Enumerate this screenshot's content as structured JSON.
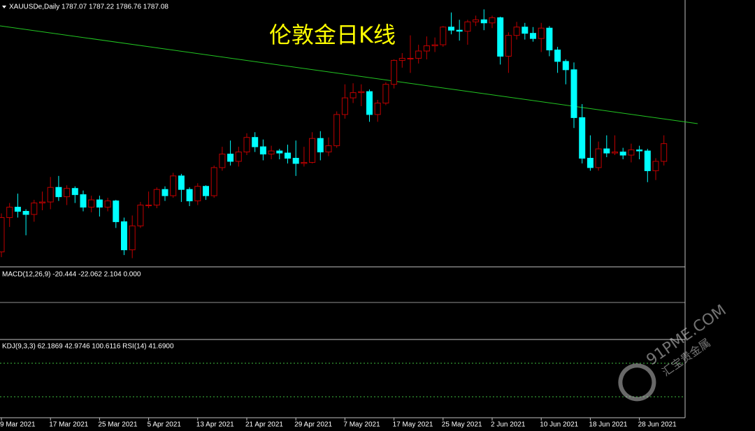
{
  "chart_data": {
    "type": "candlestick",
    "symbol_header": "XAUUSDe,Daily  1787.07 1787.22 1786.76 1787.08",
    "title": "伦敦金日K线",
    "macd_label": "MACD(12,26,9) -20.444 -22.062 2.104 0.000",
    "kdj_label": "KDJ(9,3,3) 62.1869 42.9746 100.6116  RSI(14) 41.6900",
    "watermark": "91PME.COM",
    "watermark_cn": "汇宝贵金属",
    "up_color": "#c00000",
    "down_color": "#00ffff",
    "ylim": [
      1670,
      1925
    ],
    "xticks": [
      {
        "value": 1,
        "label": "9 Mar 2021"
      },
      {
        "value": 7,
        "label": "17 Mar 2021"
      },
      {
        "value": 13,
        "label": "25 Mar 2021"
      },
      {
        "value": 19,
        "label": "5 Apr 2021"
      },
      {
        "value": 25,
        "label": "13 Apr 2021"
      },
      {
        "value": 31,
        "label": "21 Apr 2021"
      },
      {
        "value": 37,
        "label": "29 Apr 2021"
      },
      {
        "value": 43,
        "label": "7 May 2021"
      },
      {
        "value": 49,
        "label": "17 May 2021"
      },
      {
        "value": 55,
        "label": "25 May 2021"
      },
      {
        "value": 61,
        "label": "2 Jun 2021"
      },
      {
        "value": 67,
        "label": "10 Jun 2021"
      },
      {
        "value": 73,
        "label": "18 Jun 2021"
      },
      {
        "value": 79,
        "label": "28 Jun 2021"
      }
    ],
    "ohlc": [
      [
        1700,
        1703,
        1676,
        1683
      ],
      [
        1683,
        1720,
        1678,
        1716
      ],
      [
        1716,
        1730,
        1707,
        1726
      ],
      [
        1726,
        1739,
        1716,
        1722
      ],
      [
        1722,
        1724,
        1699,
        1719
      ],
      [
        1719,
        1733,
        1712,
        1730
      ],
      [
        1730,
        1741,
        1723,
        1731
      ],
      [
        1731,
        1755,
        1724,
        1745
      ],
      [
        1745,
        1756,
        1732,
        1736
      ],
      [
        1736,
        1747,
        1728,
        1744
      ],
      [
        1744,
        1746,
        1730,
        1738
      ],
      [
        1738,
        1742,
        1722,
        1726
      ],
      [
        1726,
        1737,
        1721,
        1733
      ],
      [
        1733,
        1737,
        1717,
        1726
      ],
      [
        1726,
        1735,
        1722,
        1732
      ],
      [
        1732,
        1733,
        1706,
        1712
      ],
      [
        1712,
        1716,
        1680,
        1685
      ],
      [
        1685,
        1718,
        1677,
        1708
      ],
      [
        1708,
        1731,
        1706,
        1728
      ],
      [
        1728,
        1741,
        1725,
        1728
      ],
      [
        1728,
        1745,
        1725,
        1743
      ],
      [
        1743,
        1746,
        1732,
        1737
      ],
      [
        1737,
        1759,
        1735,
        1756
      ],
      [
        1756,
        1758,
        1731,
        1743
      ],
      [
        1743,
        1745,
        1727,
        1732
      ],
      [
        1732,
        1749,
        1728,
        1746
      ],
      [
        1746,
        1747,
        1733,
        1737
      ],
      [
        1737,
        1766,
        1735,
        1764
      ],
      [
        1764,
        1784,
        1761,
        1777
      ],
      [
        1777,
        1790,
        1766,
        1770
      ],
      [
        1770,
        1784,
        1765,
        1779
      ],
      [
        1779,
        1797,
        1776,
        1793
      ],
      [
        1793,
        1798,
        1779,
        1784
      ],
      [
        1784,
        1791,
        1771,
        1777
      ],
      [
        1777,
        1785,
        1772,
        1780
      ],
      [
        1780,
        1782,
        1772,
        1778
      ],
      [
        1778,
        1786,
        1768,
        1773
      ],
      [
        1773,
        1790,
        1756,
        1768
      ],
      [
        1768,
        1784,
        1765,
        1769
      ],
      [
        1769,
        1798,
        1768,
        1792
      ],
      [
        1792,
        1799,
        1771,
        1779
      ],
      [
        1779,
        1793,
        1775,
        1785
      ],
      [
        1785,
        1818,
        1783,
        1815
      ],
      [
        1815,
        1844,
        1811,
        1831
      ],
      [
        1831,
        1845,
        1826,
        1836
      ],
      [
        1836,
        1844,
        1823,
        1837
      ],
      [
        1837,
        1839,
        1808,
        1815
      ],
      [
        1815,
        1829,
        1808,
        1826
      ],
      [
        1826,
        1846,
        1824,
        1844
      ],
      [
        1844,
        1868,
        1840,
        1867
      ],
      [
        1867,
        1874,
        1860,
        1869
      ],
      [
        1869,
        1891,
        1855,
        1869
      ],
      [
        1869,
        1882,
        1864,
        1876
      ],
      [
        1876,
        1890,
        1868,
        1881
      ],
      [
        1881,
        1889,
        1875,
        1882
      ],
      [
        1882,
        1900,
        1880,
        1899
      ],
      [
        1899,
        1913,
        1892,
        1896
      ],
      [
        1896,
        1906,
        1886,
        1895
      ],
      [
        1895,
        1906,
        1882,
        1904
      ],
      [
        1904,
        1910,
        1900,
        1906
      ],
      [
        1906,
        1916,
        1896,
        1903
      ],
      [
        1903,
        1910,
        1898,
        1908
      ],
      [
        1908,
        1909,
        1863,
        1871
      ],
      [
        1871,
        1894,
        1855,
        1891
      ],
      [
        1891,
        1904,
        1887,
        1899
      ],
      [
        1899,
        1903,
        1887,
        1893
      ],
      [
        1893,
        1899,
        1885,
        1888
      ],
      [
        1888,
        1903,
        1875,
        1898
      ],
      [
        1898,
        1900,
        1871,
        1877
      ],
      [
        1877,
        1880,
        1855,
        1866
      ],
      [
        1866,
        1868,
        1844,
        1858
      ],
      [
        1858,
        1865,
        1802,
        1812
      ],
      [
        1812,
        1825,
        1768,
        1773
      ],
      [
        1773,
        1795,
        1761,
        1764
      ],
      [
        1764,
        1789,
        1761,
        1782
      ],
      [
        1782,
        1795,
        1774,
        1778
      ],
      [
        1778,
        1795,
        1776,
        1779
      ],
      [
        1779,
        1783,
        1772,
        1776
      ],
      [
        1776,
        1787,
        1769,
        1781
      ],
      [
        1781,
        1785,
        1772,
        1780
      ],
      [
        1780,
        1782,
        1750,
        1761
      ],
      [
        1761,
        1773,
        1752,
        1770
      ],
      [
        1770,
        1795,
        1766,
        1787
      ]
    ]
  }
}
